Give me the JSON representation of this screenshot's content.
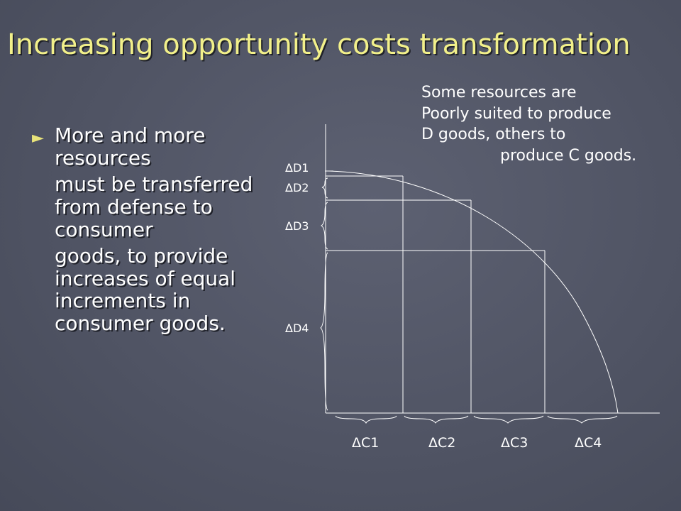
{
  "title": "Increasing opportunity costs transformation",
  "bullet": {
    "line1": "More and more resources",
    "line2": "must be transferred from defense to consumer",
    "line3": "goods, to provide increases of equal increments in consumer goods."
  },
  "note": {
    "l1": "Some resources are",
    "l2": "Poorly suited to produce",
    "l3": "D goods, others to",
    "l4": "produce C goods."
  },
  "diagram": {
    "d_labels": [
      "ΔD1",
      "ΔD2",
      "ΔD3",
      "ΔD4"
    ],
    "c_labels": [
      "ΔC1",
      "ΔC2",
      "ΔC3",
      "ΔC4"
    ]
  },
  "colors": {
    "title": "#f2f08a",
    "text": "#ffffff",
    "background": "#53576a"
  }
}
